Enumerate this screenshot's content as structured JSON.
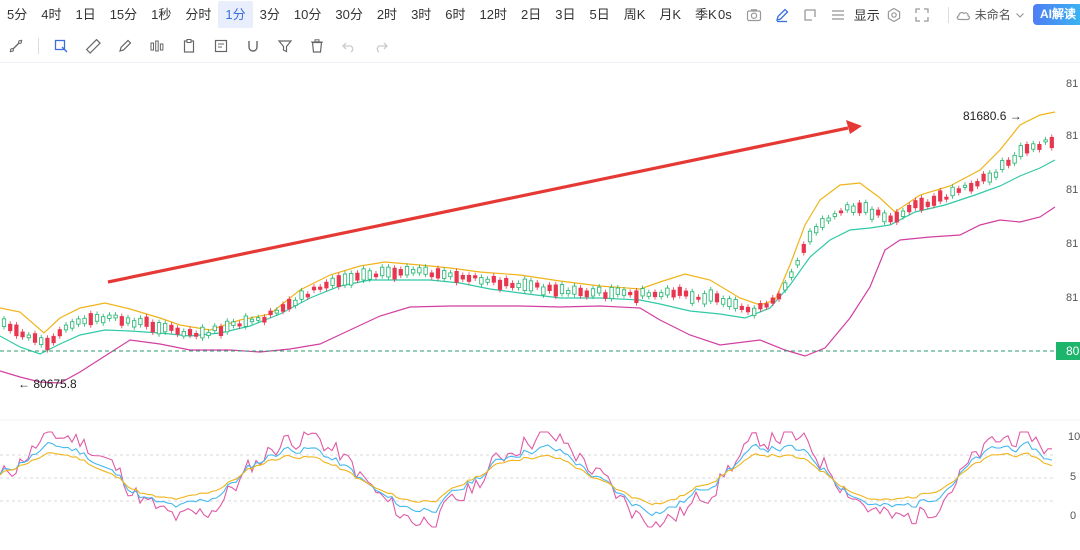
{
  "toolbar": {
    "timeframes": [
      "5分",
      "4时",
      "1日",
      "15分",
      "1秒",
      "分时",
      "1分",
      "3分",
      "10分",
      "30分",
      "2时",
      "3时",
      "6时",
      "12时",
      "2日",
      "3日",
      "5日",
      "周K",
      "月K",
      "季K"
    ],
    "active_timeframe": "1分",
    "countdown": "0s",
    "display_label": "显示",
    "layout_name": "未命名",
    "ai_label": "AI解读"
  },
  "drawing_tools": [
    "cursor-tool",
    "rectangle-tool",
    "ruler-tool",
    "brush-tool",
    "indicator-tool",
    "clipboard-tool",
    "note-tool",
    "magnet-tool",
    "filter-tool",
    "delete-tool",
    "undo-tool",
    "redo-tool"
  ],
  "price_labels": {
    "high": "81680.6",
    "low": "80675.8",
    "current_tag": "80"
  },
  "axis": {
    "main_ticks": [
      "81",
      "81",
      "81",
      "81",
      "81"
    ],
    "sub_ticks": [
      "10",
      "5",
      "0"
    ]
  },
  "colors": {
    "up": "#1db46b",
    "down": "#e8364f",
    "boll_upper": "#f0b41a",
    "boll_mid": "#2fc9a6",
    "boll_lower": "#d23fa1",
    "arrow": "#e53935",
    "k_line": "#e05aa6",
    "d_line": "#46b8f0",
    "j_line": "#f0b41a"
  },
  "chart_data": {
    "type": "candlestick",
    "annotations": [
      "81680.6",
      "80675.8"
    ],
    "indicator_panel": "stochastic"
  }
}
